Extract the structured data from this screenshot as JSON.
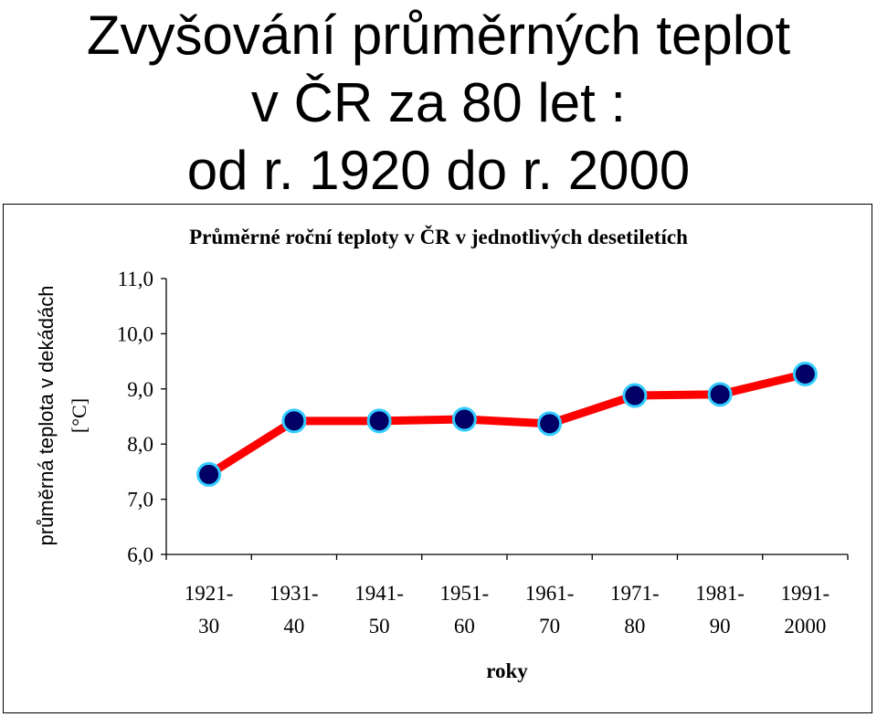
{
  "slide": {
    "title_lines": [
      "Zvyšování průměrných teplot",
      "v ČR za 80 let :",
      "od r. 1920 do r. 2000"
    ]
  },
  "chart_data": {
    "type": "line",
    "title": "Průměrné roční teploty v ČR v jednotlivých desetiletích",
    "xlabel": "roky",
    "ylabel": "průměrná teplota v dekádách",
    "ylabel_unit": "[°C]",
    "categories": [
      [
        "1921-",
        "30"
      ],
      [
        "1931-",
        "40"
      ],
      [
        "1941-",
        "50"
      ],
      [
        "1951-",
        "60"
      ],
      [
        "1961-",
        "70"
      ],
      [
        "1971-",
        "80"
      ],
      [
        "1981-",
        "90"
      ],
      [
        "1991-",
        "2000"
      ]
    ],
    "values": [
      7.45,
      8.42,
      8.42,
      8.45,
      8.37,
      8.88,
      8.9,
      9.27
    ],
    "ylim": [
      6,
      11
    ],
    "yticks": [
      "6,0",
      "7,0",
      "8,0",
      "9,0",
      "10,0",
      "11,0"
    ],
    "grid": false,
    "line_color": "#ff0000",
    "marker_fill": "#000066",
    "marker_edge": "#33ccff"
  }
}
